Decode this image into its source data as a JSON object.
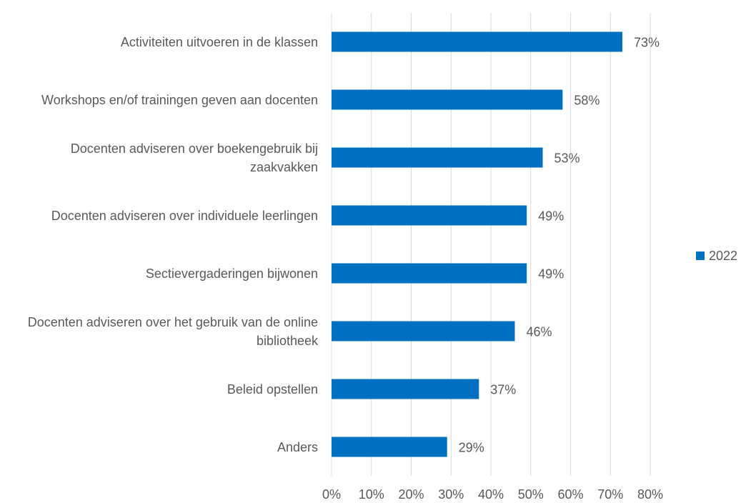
{
  "chart_data": {
    "type": "bar",
    "orientation": "horizontal",
    "categories": [
      "Activiteiten uitvoeren in de klassen",
      "Workshops en/of trainingen geven aan docenten",
      "Docenten adviseren over boekengebruik bij zaakvakken",
      "Docenten adviseren over individuele leerlingen",
      "Sectievergaderingen bijwonen",
      "Docenten adviseren over het gebruik van de online bibliotheek",
      "Beleid opstellen",
      "Anders"
    ],
    "series": [
      {
        "name": "2022",
        "color": "#0070c0",
        "values": [
          73,
          58,
          53,
          49,
          49,
          46,
          37,
          29
        ],
        "value_labels": [
          "73%",
          "58%",
          "53%",
          "49%",
          "49%",
          "46%",
          "37%",
          "29%"
        ]
      }
    ],
    "xlim": [
      0,
      80
    ],
    "xticks": [
      {
        "value": 0,
        "label": "0%"
      },
      {
        "value": 10,
        "label": "10%"
      },
      {
        "value": 20,
        "label": "20%"
      },
      {
        "value": 30,
        "label": "30%"
      },
      {
        "value": 40,
        "label": "40%"
      },
      {
        "value": 50,
        "label": "50%"
      },
      {
        "value": 60,
        "label": "60%"
      },
      {
        "value": 70,
        "label": "70%"
      },
      {
        "value": 80,
        "label": "80%"
      }
    ],
    "grid": true,
    "legend": "right"
  }
}
